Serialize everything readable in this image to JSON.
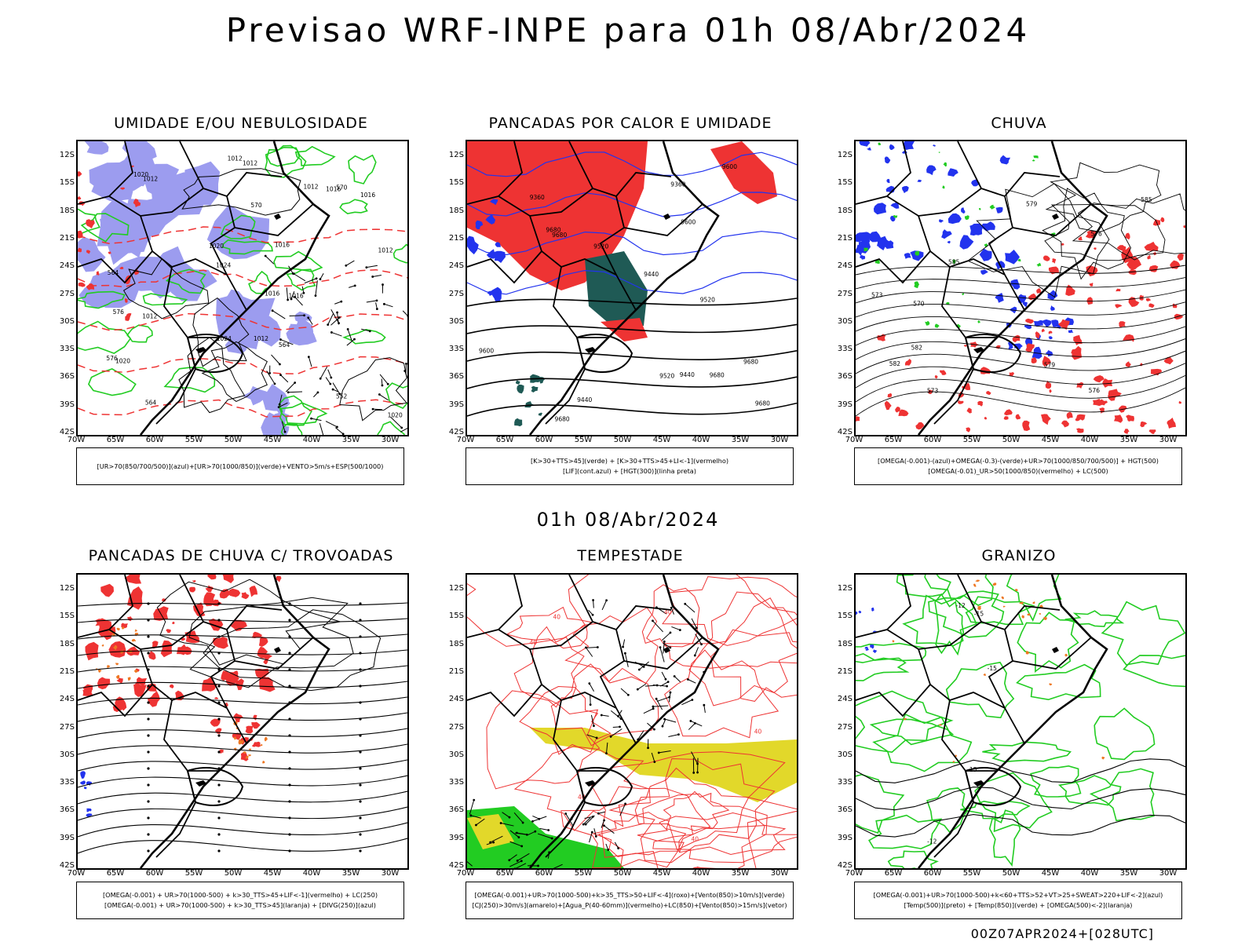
{
  "main_title": "Previsao WRF-INPE  para 01h 08/Abr/2024",
  "middle_time": "01h 08/Abr/2024",
  "footer": "00Z07APR2024+[028UTC]",
  "axes": {
    "lat_ticks": [
      "12S",
      "15S",
      "18S",
      "21S",
      "24S",
      "27S",
      "30S",
      "33S",
      "36S",
      "39S",
      "42S"
    ],
    "lon_ticks": [
      "70W",
      "65W",
      "60W",
      "55W",
      "50W",
      "45W",
      "40W",
      "35W",
      "30W"
    ]
  },
  "colors": {
    "blue": "#2233ee",
    "lavender": "#9c9cef",
    "green": "#22cc22",
    "red": "#ee3333",
    "dark_teal": "#1f5a55",
    "yellow": "#e2d82a",
    "orange": "#ee7722",
    "black": "#000000"
  },
  "chart_data": [
    {
      "type": "map",
      "title": "UMIDADE E/OU NEBULOSIDADE",
      "legend": [
        "[UR>70(850/700/500)](azul)+[UR>70(1000/850)](verde)+VENTO>5m/s+ESP(500/1000)"
      ],
      "contour_labels": [
        "1012",
        "1012",
        "1012",
        "1012",
        "1016",
        "1016",
        "1016",
        "1016",
        "1020",
        "1020",
        "1020",
        "1024",
        "1024",
        "1012",
        "1012",
        "1012",
        "1016",
        "1020",
        "576",
        "576",
        "570",
        "570",
        "564",
        "564",
        "564",
        "552"
      ]
    },
    {
      "type": "map",
      "title": "PANCADAS POR CALOR E UMIDADE",
      "legend": [
        "[K>30+TTS>45](verde) + [K>30+TTS>45+LI<-1](vermelho)",
        "[LIF](cont.azul) + [HGT(300)](linha preta)"
      ],
      "contour_labels": [
        "9680",
        "9680",
        "9680",
        "9680",
        "9680",
        "9680",
        "9600",
        "9600",
        "9600",
        "9520",
        "9520",
        "9520",
        "9440",
        "9440",
        "9440",
        "9360",
        "9360"
      ]
    },
    {
      "type": "map",
      "title": "CHUVA",
      "legend": [
        "[OMEGA(-0.001)-(azul)+OMEGA(-0.3)-(verde)+UR>70(1000/850/700/500)] + HGT(500)",
        "[OMEGA(-0.01)_UR>50(1000/850)(vermelho) + LC(500)"
      ],
      "contour_labels": [
        "585",
        "585",
        "582",
        "582",
        "579",
        "579",
        "576",
        "576",
        "573",
        "573",
        "570"
      ]
    },
    {
      "type": "map",
      "title": "PANCADAS DE CHUVA C/ TROVOADAS",
      "legend": [
        "[OMEGA(-0.001) + UR>70(1000-500) + k>30_TTS>45+LIF<-1](vermelho) + LC(250)",
        "[OMEGA(-0.001) + UR>70(1000-500) + k>30_TTS>45](laranja) + [DIVG(250)](azul)"
      ],
      "contour_labels": []
    },
    {
      "type": "map",
      "title": "TEMPESTADE",
      "legend": [
        "[OMEGA(-0.001)+UR>70(1000-500)+k>35_TTS>50+LIF<-4](roxo)+[Vento(850)>10m/s](verde)",
        "[CJ(250)>30m/s](amarelo)+[Agua_P(40-60mm)](vermelho)+LC(850)+[Vento(850)>15m/s](vetor)"
      ],
      "contour_labels": [
        "40",
        "40",
        "40",
        "40",
        "40",
        "40"
      ]
    },
    {
      "type": "map",
      "title": "GRANIZO",
      "legend": [
        "[OMEGA(-0.001)+UR>70(1000-500)+k<60+TTS>52+VT>25+SWEAT>220+LIF<-2](azul)",
        "[Temp(500)](preto) + [Temp(850)](verde) + [OMEGA(500)<-2](laranja)"
      ],
      "contour_labels": [
        "-12",
        "-12",
        "-15",
        "-15",
        "-15"
      ]
    }
  ]
}
